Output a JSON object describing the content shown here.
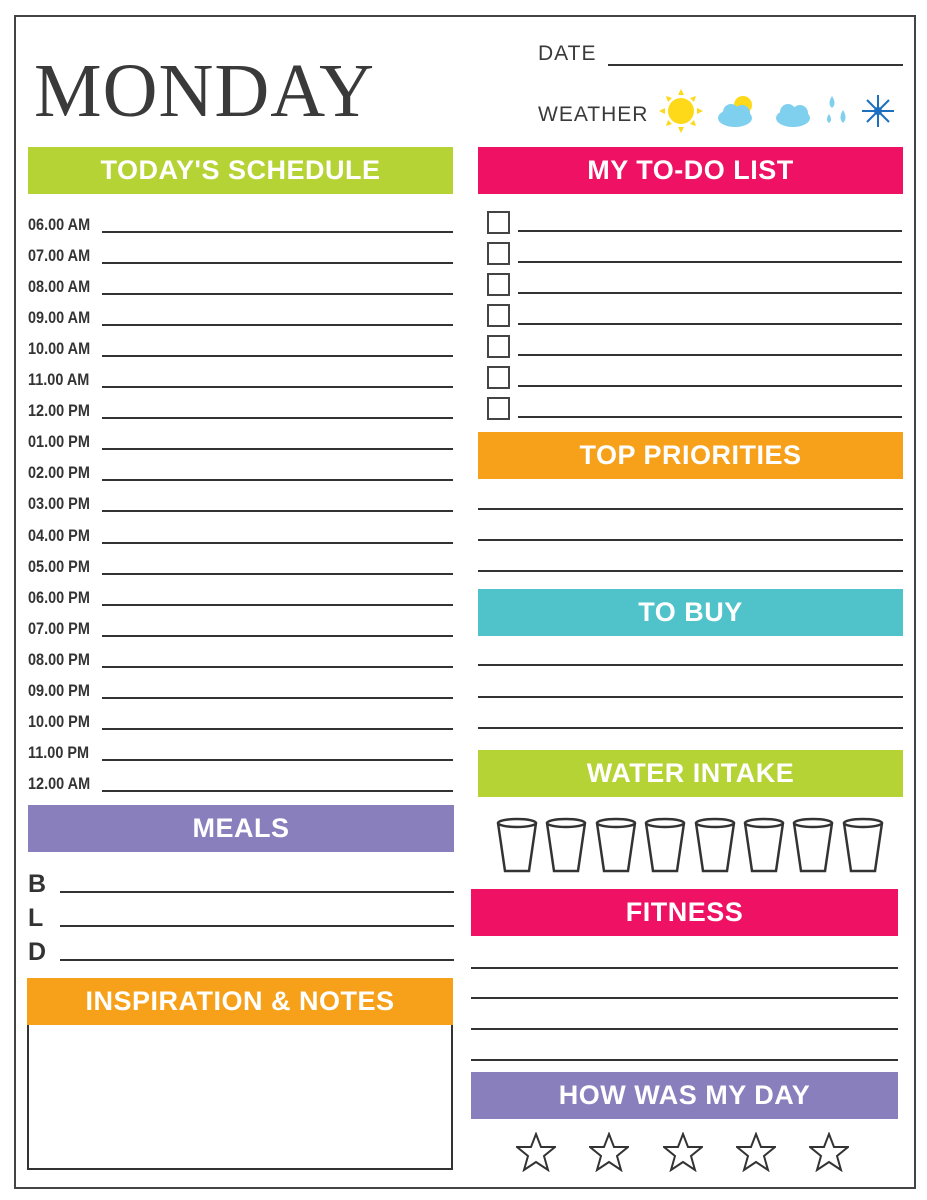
{
  "title": "MONDAY",
  "date_label": "DATE",
  "weather_label": "WEATHER",
  "weather_icons": [
    "sun-icon",
    "partly-cloudy-icon",
    "cloud-icon",
    "rain-icon",
    "snowflake-icon"
  ],
  "colors": {
    "green": "#b5d334",
    "pink": "#ee1164",
    "orange": "#f7a11b",
    "teal": "#4fc3c9",
    "purple": "#8a7fbd"
  },
  "schedule": {
    "title": "TODAY'S SCHEDULE",
    "times": [
      "06.00 AM",
      "07.00 AM",
      "08.00 AM",
      "09.00 AM",
      "10.00 AM",
      "11.00 AM",
      "12.00 PM",
      "01.00 PM",
      "02.00 PM",
      "03.00 PM",
      "04.00 PM",
      "05.00 PM",
      "06.00 PM",
      "07.00 PM",
      "08.00 PM",
      "09.00 PM",
      "10.00 PM",
      "11.00 PM",
      "12.00 AM"
    ]
  },
  "todo": {
    "title": "MY TO-DO LIST",
    "count": 7
  },
  "priorities": {
    "title": "TOP PRIORITIES"
  },
  "to_buy": {
    "title": "TO BUY"
  },
  "water": {
    "title": "WATER INTAKE",
    "glasses": 8
  },
  "fitness": {
    "title": "FITNESS"
  },
  "day_rating": {
    "title": "HOW WAS MY DAY",
    "stars": 5
  },
  "meals": {
    "title": "MEALS",
    "items": [
      "B",
      "L",
      "D"
    ]
  },
  "notes": {
    "title": "INSPIRATION & NOTES"
  }
}
